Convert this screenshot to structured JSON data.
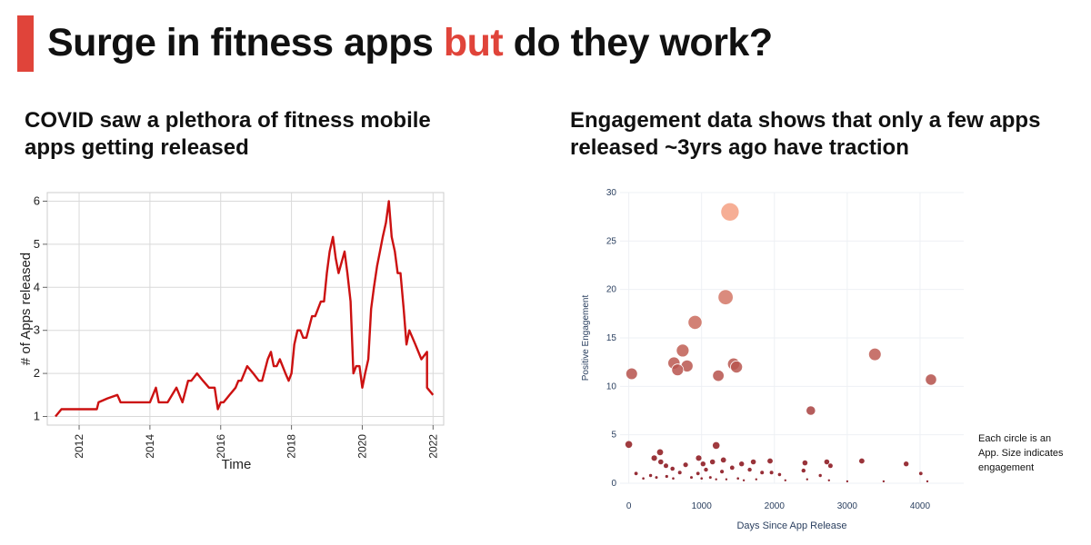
{
  "header": {
    "title_before": "Surge in fitness apps ",
    "title_highlight": "but",
    "title_after": " do they work?",
    "accent_color": "#e0443a"
  },
  "left_panel": {
    "subtitle": "COVID saw a plethora of fitness mobile apps getting released"
  },
  "right_panel": {
    "subtitle": "Engagement data shows that only a few apps released ~3yrs ago have traction",
    "annotation": "Each circle is an App. Size indicates engagement"
  },
  "chart_data": [
    {
      "type": "line",
      "title": "",
      "xlabel": "Time",
      "ylabel": "# of Apps released",
      "xlim": [
        2011.1,
        2022.3
      ],
      "ylim": [
        0.8,
        6.2
      ],
      "x_ticks": [
        "2012",
        "2014",
        "2016",
        "2018",
        "2020",
        "2022"
      ],
      "x_tick_values": [
        2012,
        2014,
        2016,
        2018,
        2020,
        2022
      ],
      "y_ticks": [
        "1",
        "2",
        "3",
        "4",
        "5",
        "6"
      ],
      "y_tick_values": [
        1,
        2,
        3,
        4,
        5,
        6
      ],
      "grid": true,
      "color": "#cc1111",
      "series": [
        {
          "x": [
            2011.33,
            2011.5,
            2011.75,
            2012.0,
            2012.25,
            2012.5,
            2012.55,
            2012.8,
            2013.08,
            2013.17,
            2013.42,
            2013.67,
            2014.0,
            2014.17,
            2014.25,
            2014.5,
            2014.75,
            2014.92,
            2015.08,
            2015.17,
            2015.33,
            2015.5,
            2015.67,
            2015.83,
            2015.92,
            2016.0,
            2016.08,
            2016.17,
            2016.25,
            2016.42,
            2016.5,
            2016.58,
            2016.75,
            2016.92,
            2017.08,
            2017.17,
            2017.33,
            2017.42,
            2017.5,
            2017.58,
            2017.67,
            2017.83,
            2017.92,
            2018.0,
            2018.08,
            2018.17,
            2018.25,
            2018.33,
            2018.42,
            2018.58,
            2018.67,
            2018.83,
            2018.92,
            2019.0,
            2019.08,
            2019.17,
            2019.25,
            2019.33,
            2019.5,
            2019.58,
            2019.67,
            2019.75,
            2019.83,
            2019.92,
            2020.0,
            2020.08,
            2020.17,
            2020.25,
            2020.33,
            2020.42,
            2020.5,
            2020.58,
            2020.67,
            2020.75,
            2020.83,
            2020.92,
            2021.0,
            2021.08,
            2021.17,
            2021.25,
            2021.33,
            2021.42,
            2021.5,
            2021.67,
            2021.83
          ],
          "y": [
            1.0,
            1.17,
            1.17,
            1.17,
            1.17,
            1.17,
            1.33,
            1.42,
            1.5,
            1.33,
            1.33,
            1.33,
            1.33,
            1.67,
            1.33,
            1.33,
            1.67,
            1.33,
            1.83,
            1.83,
            2.0,
            1.83,
            1.67,
            1.67,
            1.17,
            1.33,
            1.33,
            1.42,
            1.5,
            1.67,
            1.83,
            1.83,
            2.17,
            2.0,
            1.83,
            1.83,
            2.33,
            2.5,
            2.17,
            2.17,
            2.33,
            2.0,
            1.83,
            2.0,
            2.67,
            3.0,
            3.0,
            2.83,
            2.83,
            3.33,
            3.33,
            3.67,
            3.67,
            4.33,
            4.83,
            5.17,
            4.67,
            4.33,
            4.83,
            4.33,
            3.67,
            2.0,
            2.17,
            2.17,
            1.67,
            2.0,
            2.33,
            3.5,
            4.0,
            4.5,
            4.83,
            5.17,
            5.5,
            6.0,
            5.17,
            4.83,
            4.33,
            4.33,
            3.5,
            2.67,
            3.0,
            2.83,
            2.67,
            2.33,
            2.5
          ],
          "extension": {
            "x": [
              2021.67,
              2021.83,
              2022.0
            ],
            "y": [
              2.33,
              1.67,
              1.5
            ]
          }
        }
      ]
    },
    {
      "type": "scatter",
      "title": "",
      "xlabel": "Days Since App Release",
      "ylabel": "Positive Engagement",
      "xlim": [
        -120,
        4600
      ],
      "ylim": [
        0,
        30
      ],
      "x_ticks": [
        "0",
        "1000",
        "2000",
        "3000",
        "4000"
      ],
      "x_tick_values": [
        0,
        1000,
        2000,
        3000,
        4000
      ],
      "y_ticks": [
        "0",
        "5",
        "10",
        "15",
        "20",
        "25",
        "30"
      ],
      "y_tick_values": [
        0,
        5,
        10,
        15,
        20,
        25,
        30
      ],
      "grid": true,
      "size_encodes": "engagement",
      "points": [
        {
          "x": 1390,
          "y": 28.0
        },
        {
          "x": 1330,
          "y": 19.2
        },
        {
          "x": 910,
          "y": 16.6
        },
        {
          "x": 740,
          "y": 13.7
        },
        {
          "x": 620,
          "y": 12.4
        },
        {
          "x": 800,
          "y": 12.1
        },
        {
          "x": 1440,
          "y": 12.3
        },
        {
          "x": 1480,
          "y": 12.0
        },
        {
          "x": 670,
          "y": 11.7
        },
        {
          "x": 1230,
          "y": 11.1
        },
        {
          "x": 40,
          "y": 11.3
        },
        {
          "x": 3380,
          "y": 13.3
        },
        {
          "x": 4150,
          "y": 10.7
        },
        {
          "x": 2500,
          "y": 7.5
        },
        {
          "x": 0,
          "y": 4.0
        },
        {
          "x": 430,
          "y": 3.2
        },
        {
          "x": 350,
          "y": 2.6
        },
        {
          "x": 1200,
          "y": 3.9
        },
        {
          "x": 960,
          "y": 2.6
        },
        {
          "x": 1150,
          "y": 2.2
        },
        {
          "x": 440,
          "y": 2.2
        },
        {
          "x": 1300,
          "y": 2.4
        },
        {
          "x": 1710,
          "y": 2.2
        },
        {
          "x": 1940,
          "y": 2.3
        },
        {
          "x": 2720,
          "y": 2.2
        },
        {
          "x": 3200,
          "y": 2.3
        },
        {
          "x": 3810,
          "y": 2.0
        },
        {
          "x": 1550,
          "y": 2.0
        },
        {
          "x": 2420,
          "y": 2.1
        },
        {
          "x": 1020,
          "y": 2.0
        },
        {
          "x": 1420,
          "y": 1.6
        },
        {
          "x": 1060,
          "y": 1.4
        },
        {
          "x": 780,
          "y": 1.9
        },
        {
          "x": 510,
          "y": 1.8
        },
        {
          "x": 1660,
          "y": 1.4
        },
        {
          "x": 600,
          "y": 1.5
        },
        {
          "x": 1280,
          "y": 1.2
        },
        {
          "x": 2770,
          "y": 1.8
        },
        {
          "x": 2400,
          "y": 1.3
        },
        {
          "x": 100,
          "y": 1.0
        },
        {
          "x": 700,
          "y": 1.1
        },
        {
          "x": 1830,
          "y": 1.1
        },
        {
          "x": 2070,
          "y": 0.9
        },
        {
          "x": 1960,
          "y": 1.1
        },
        {
          "x": 4010,
          "y": 1.0
        },
        {
          "x": 2630,
          "y": 0.8
        },
        {
          "x": 950,
          "y": 1.0
        },
        {
          "x": 200,
          "y": 0.5
        },
        {
          "x": 300,
          "y": 0.8
        },
        {
          "x": 380,
          "y": 0.6
        },
        {
          "x": 520,
          "y": 0.7
        },
        {
          "x": 610,
          "y": 0.5
        },
        {
          "x": 860,
          "y": 0.6
        },
        {
          "x": 1000,
          "y": 0.5
        },
        {
          "x": 1120,
          "y": 0.6
        },
        {
          "x": 1200,
          "y": 0.4
        },
        {
          "x": 1340,
          "y": 0.4
        },
        {
          "x": 1500,
          "y": 0.5
        },
        {
          "x": 1580,
          "y": 0.3
        },
        {
          "x": 1750,
          "y": 0.4
        },
        {
          "x": 2150,
          "y": 0.3
        },
        {
          "x": 2450,
          "y": 0.4
        },
        {
          "x": 2750,
          "y": 0.3
        },
        {
          "x": 3000,
          "y": 0.2
        },
        {
          "x": 3500,
          "y": 0.2
        },
        {
          "x": 4100,
          "y": 0.2
        }
      ]
    }
  ]
}
